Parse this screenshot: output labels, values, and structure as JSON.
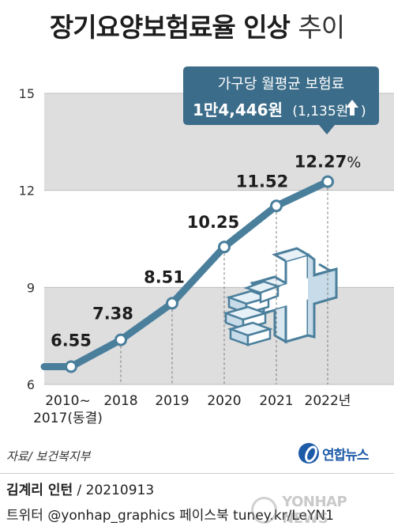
{
  "header": {
    "title_main": "장기요양보험료율 인상",
    "title_light": "추이"
  },
  "chart_data": {
    "type": "line",
    "title": "장기요양보험료율 인상 추이",
    "x_labels": [
      "2010~\n2017(동결)",
      "2018",
      "2019",
      "2020",
      "2021",
      "2022년"
    ],
    "values": [
      6.55,
      7.38,
      8.51,
      10.25,
      11.52,
      12.27
    ],
    "value_labels": [
      "6.55",
      "7.38",
      "8.51",
      "10.25",
      "11.52",
      "12.27%"
    ],
    "yticks": [
      6,
      9,
      12,
      15
    ],
    "ylim": [
      6,
      15
    ],
    "line_color": "#4a7f9c",
    "band_color": "#dedede",
    "annotation": {
      "line1": "가구당 월평균 보험료",
      "line2_bold": "1만4,446원",
      "line2_rest": "(1,135원",
      "arrow_icon": "up-arrow-icon",
      "close": ")",
      "bg_color": "#3b6c89"
    }
  },
  "footer": {
    "source": "자료/ 보건복지부",
    "logo_text": "연합뉴스",
    "credit_name": "김계리 인턴",
    "credit_rest": " / 20210913",
    "social": "트위터 @yonhap_graphics  페이스북 tuney.kr/LeYN1",
    "watermark": "YONHAP NEWS"
  }
}
